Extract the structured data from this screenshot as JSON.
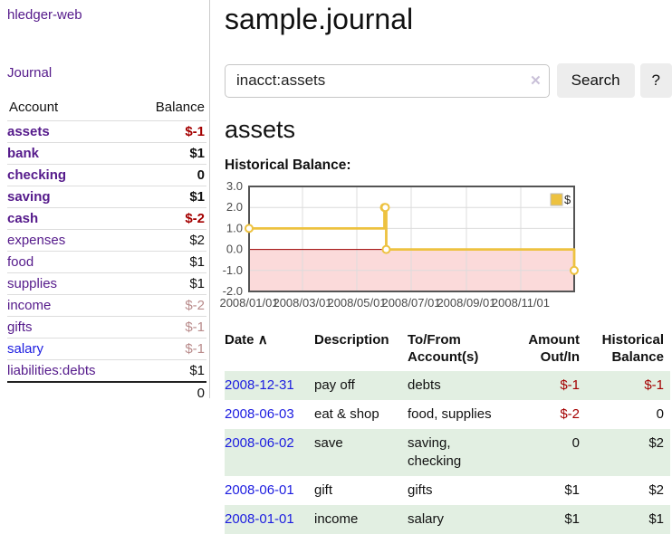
{
  "colors": {
    "link_purple": "#551a8b",
    "link_blue": "#1c1ce0",
    "negative_red": "#a40000",
    "faded_negative": "#b98b8b",
    "row_stripe_green": "#e2efe2",
    "chart_line_yellow": "#edc240",
    "chart_negative_fill": "#fbdada",
    "chart_zero_line": "#a00000"
  },
  "sidebar": {
    "app_title": "hledger-web",
    "journal_link": "Journal",
    "accounts_table": {
      "headers": {
        "account": "Account",
        "balance": "Balance"
      },
      "rows": [
        {
          "name": "assets",
          "balance": "$-1",
          "indent": 1,
          "bold": true,
          "balance_style": "negative",
          "link_style": "purple"
        },
        {
          "name": "bank",
          "balance": "$1",
          "indent": 2,
          "bold": true,
          "balance_style": "normal",
          "link_style": "purple"
        },
        {
          "name": "checking",
          "balance": "0",
          "indent": 3,
          "bold": true,
          "balance_style": "normal",
          "link_style": "purple"
        },
        {
          "name": "saving",
          "balance": "$1",
          "indent": 3,
          "bold": true,
          "balance_style": "normal",
          "link_style": "purple"
        },
        {
          "name": "cash",
          "balance": "$-2",
          "indent": 2,
          "bold": true,
          "balance_style": "negative",
          "link_style": "purple"
        },
        {
          "name": "expenses",
          "balance": "$2",
          "indent": 1,
          "bold": false,
          "balance_style": "normal",
          "link_style": "purple"
        },
        {
          "name": "food",
          "balance": "$1",
          "indent": 2,
          "bold": false,
          "balance_style": "normal",
          "link_style": "purple"
        },
        {
          "name": "supplies",
          "balance": "$1",
          "indent": 2,
          "bold": false,
          "balance_style": "normal",
          "link_style": "purple"
        },
        {
          "name": "income",
          "balance": "$-2",
          "indent": 1,
          "bold": false,
          "balance_style": "faded-negative",
          "link_style": "purple"
        },
        {
          "name": "gifts",
          "balance": "$-1",
          "indent": 2,
          "bold": false,
          "balance_style": "faded-negative",
          "link_style": "purple"
        },
        {
          "name": "salary",
          "balance": "$-1",
          "indent": 2,
          "bold": false,
          "balance_style": "faded-negative",
          "link_style": "blue"
        },
        {
          "name": "liabilities:debts",
          "balance": "$1",
          "indent": 1,
          "bold": false,
          "balance_style": "normal",
          "link_style": "purple"
        }
      ],
      "total": "0"
    }
  },
  "main": {
    "title": "sample.journal",
    "search": {
      "value": "inacct:assets",
      "clear_icon": "✕",
      "button_label": "Search",
      "help_label": "?"
    },
    "account_heading": "assets",
    "chart_label": "Historical Balance:",
    "register_table": {
      "headers": {
        "date": "Date",
        "sort_asc_icon": "∧",
        "description": "Description",
        "accounts": "To/From\nAccount(s)",
        "amount": "Amount\nOut/In",
        "balance": "Historical\nBalance"
      },
      "rows": [
        {
          "date": "2008-12-31",
          "description": "pay off",
          "accounts": "debts",
          "amount": "$-1",
          "amount_negative": true,
          "balance": "$-1",
          "balance_negative": true
        },
        {
          "date": "2008-06-03",
          "description": "eat & shop",
          "accounts": "food, supplies",
          "amount": "$-2",
          "amount_negative": true,
          "balance": "0",
          "balance_negative": false
        },
        {
          "date": "2008-06-02",
          "description": "save",
          "accounts": "saving,\nchecking",
          "amount": "0",
          "amount_negative": false,
          "balance": "$2",
          "balance_negative": false
        },
        {
          "date": "2008-06-01",
          "description": "gift",
          "accounts": "gifts",
          "amount": "$1",
          "amount_negative": false,
          "balance": "$2",
          "balance_negative": false
        },
        {
          "date": "2008-01-01",
          "description": "income",
          "accounts": "salary",
          "amount": "$1",
          "amount_negative": false,
          "balance": "$1",
          "balance_negative": false
        }
      ]
    }
  },
  "chart_data": {
    "type": "line",
    "step": true,
    "title": "Historical Balance:",
    "series": [
      {
        "name": "$",
        "color": "#edc240",
        "points": [
          [
            "2008-01-01",
            1
          ],
          [
            "2008-06-01",
            2
          ],
          [
            "2008-06-02",
            2
          ],
          [
            "2008-06-03",
            0
          ],
          [
            "2008-12-31",
            -1
          ]
        ]
      }
    ],
    "xlim": [
      "2008-01-01",
      "2008-12-31"
    ],
    "ylim": [
      -2,
      3
    ],
    "ytick_values": [
      3,
      2,
      1,
      0,
      -1,
      -2
    ],
    "ytick_labels": [
      "3.0",
      "2.0",
      "1.0",
      "0.0",
      "-1.0",
      "-2.0"
    ],
    "xtick_dates": [
      "2008-01-01",
      "2008-03-01",
      "2008-05-01",
      "2008-07-01",
      "2008-09-01",
      "2008-11-01"
    ],
    "xtick_labels": [
      "2008/01/01",
      "2008/03/01",
      "2008/05/01",
      "2008/07/01",
      "2008/09/01",
      "2008/11/01"
    ],
    "grid": true,
    "border_color": "#545454",
    "grid_color": "#dcdcdc",
    "tick_label_color": "#4a4a4a",
    "legend": {
      "label": "$",
      "position": "top-right"
    },
    "negative_region": {
      "from": -2,
      "to": 0,
      "fill": "#fbdada",
      "zero_line_color": "#a00000"
    }
  }
}
